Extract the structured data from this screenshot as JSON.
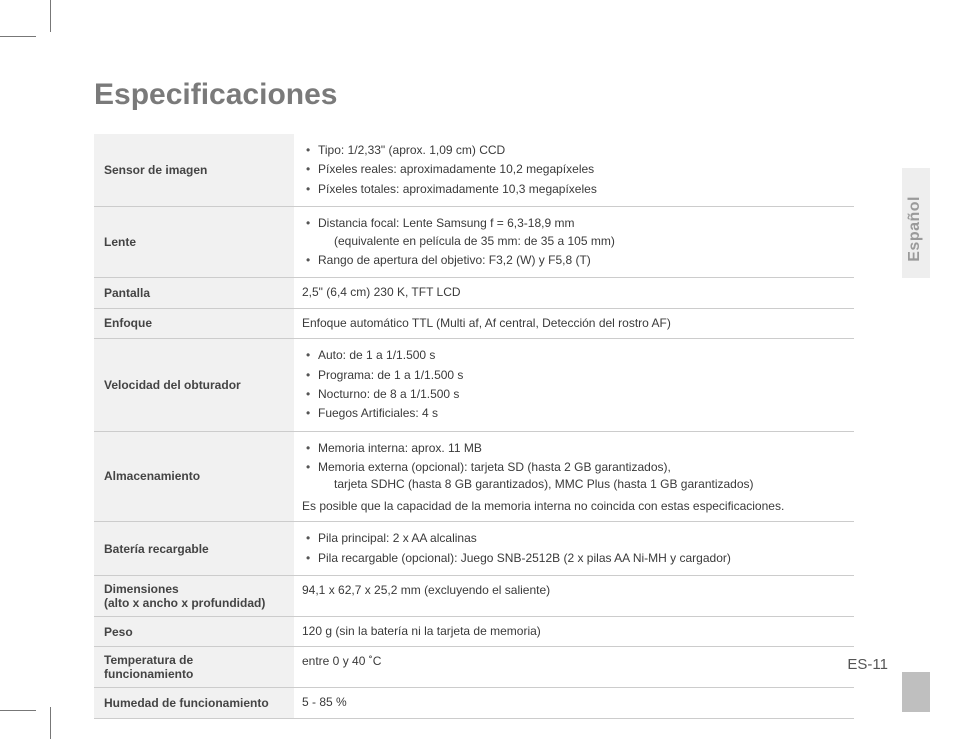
{
  "title": "Especificaciones",
  "language_tab": "Español",
  "page_number": "ES-11",
  "colors": {
    "title": "#7a7a7a",
    "row_header_bg": "#f1f1f1",
    "row_border": "#cccccc",
    "text": "#3a3a3a",
    "side_tab_bg": "#eeeeee",
    "thumb_tab_bg": "#bfbfbf"
  },
  "rows": {
    "sensor": {
      "label": "Sensor de imagen",
      "items": [
        "Tipo: 1/2,33\" (aprox. 1,09 cm) CCD",
        "Píxeles reales: aproximadamente 10,2 megapíxeles",
        "Píxeles totales: aproximadamente 10,3 megapíxeles"
      ]
    },
    "lens": {
      "label": "Lente",
      "items": [
        "Distancia focal: Lente Samsung  f = 6,3-18,9 mm",
        "Rango de apertura del objetivo: F3,2 (W) y F5,8 (T)"
      ],
      "lens_subline": "(equivalente en película de 35 mm: de 35 a 105 mm)"
    },
    "display": {
      "label": "Pantalla",
      "value": "2,5\" (6,4 cm) 230 K, TFT LCD"
    },
    "focus": {
      "label": "Enfoque",
      "value": "Enfoque automático TTL (Multi af, Af central, Detección del rostro AF)"
    },
    "shutter": {
      "label": "Velocidad del obturador",
      "items": [
        "Auto: de 1 a 1/1.500 s",
        "Programa: de 1 a 1/1.500 s",
        "Nocturno: de 8 a 1/1.500 s",
        "Fuegos Artificiales: 4 s"
      ]
    },
    "storage": {
      "label": "Almacenamiento",
      "items": [
        "Memoria interna: aprox. 11 MB",
        "Memoria externa (opcional): tarjeta SD (hasta 2 GB garantizados),"
      ],
      "storage_subline": "tarjeta SDHC (hasta 8 GB garantizados), MMC Plus (hasta 1 GB garantizados)",
      "note": "Es posible que la capacidad de la memoria interna no coincida con estas especificaciones."
    },
    "battery": {
      "label": "Batería recargable",
      "items": [
        "Pila principal: 2 x AA alcalinas",
        "Pila recargable (opcional): Juego SNB-2512B (2 x pilas AA Ni-MH y cargador)"
      ]
    },
    "dimensions": {
      "label": "Dimensiones",
      "label_sub": "(alto x ancho x profundidad)",
      "value": "94,1 x 62,7 x 25,2 mm (excluyendo el saliente)"
    },
    "weight": {
      "label": "Peso",
      "value": "120 g (sin la batería ni la tarjeta de memoria)"
    },
    "temp": {
      "label": "Temperatura de funcionamiento",
      "value": "entre 0 y 40 ˚C"
    },
    "humidity": {
      "label": "Humedad de funcionamiento",
      "value": "5 - 85 %"
    }
  }
}
